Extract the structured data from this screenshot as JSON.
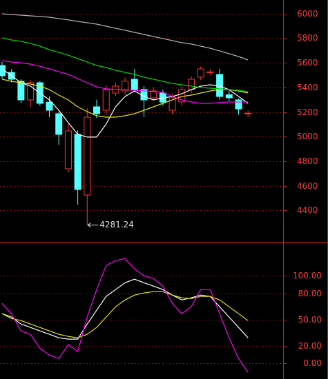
{
  "chart_data": [
    {
      "type": "candlestick",
      "categories": [
        null,
        null,
        null,
        null,
        null,
        null,
        null,
        null,
        null,
        null,
        null,
        null,
        null,
        null,
        null,
        null,
        null,
        null,
        null,
        null,
        null,
        null,
        null,
        null,
        null,
        null,
        null
      ],
      "open": [
        5578,
        5522,
        5450,
        5298,
        5438,
        5280,
        5186,
        4738,
        5018,
        4525,
        5242,
        5214,
        5354,
        5371,
        5466,
        5382,
        5315,
        5354,
        5214,
        5282,
        5382,
        5483,
        5520,
        5505,
        5340,
        5298,
        5186
      ],
      "high": [
        5606,
        5550,
        5466,
        5460,
        5450,
        5326,
        5200,
        5102,
        5050,
        5230,
        5300,
        5420,
        5440,
        5480,
        5550,
        5410,
        5400,
        5380,
        5350,
        5410,
        5490,
        5570,
        5550,
        5550,
        5380,
        5310,
        5210
      ],
      "low": [
        5466,
        5440,
        5270,
        5242,
        5250,
        5158,
        4934,
        4710,
        4447,
        4281.24,
        5150,
        5180,
        5330,
        5340,
        5360,
        5158,
        5290,
        5250,
        5180,
        5250,
        5350,
        5460,
        5500,
        5300,
        5290,
        5180,
        5160
      ],
      "close": [
        5494,
        5466,
        5298,
        5438,
        5270,
        5214,
        5018,
        5046,
        4570,
        5158,
        5186,
        5382,
        5410,
        5450,
        5382,
        5298,
        5371,
        5280,
        5315,
        5382,
        5466,
        5550,
        5526,
        5326,
        5315,
        5225,
        5190
      ],
      "up_color": "#ff3232",
      "down_color": "#54ffff",
      "series": [
        {
          "color": "#ffffff",
          "values": [
            5550,
            5494,
            5438,
            5410,
            5354,
            5298,
            5214,
            5113,
            5018,
            4996,
            4996,
            5102,
            5242,
            5326,
            5371,
            5326,
            5298,
            5315,
            5326,
            5348,
            5382,
            5410,
            5421,
            5410,
            5382,
            5326,
            5270
          ]
        },
        {
          "color": "#e6e600",
          "values": [
            5466,
            5449,
            5438,
            5427,
            5410,
            5382,
            5337,
            5298,
            5242,
            5203,
            5169,
            5158,
            5158,
            5169,
            5186,
            5214,
            5242,
            5270,
            5298,
            5326,
            5337,
            5354,
            5371,
            5382,
            5382,
            5371,
            5354
          ]
        },
        {
          "color": "#ff00ff",
          "values": [
            5617,
            5606,
            5600,
            5589,
            5572,
            5550,
            5528,
            5505,
            5472,
            5438,
            5404,
            5388,
            5382,
            5382,
            5376,
            5371,
            5365,
            5360,
            5326,
            5298,
            5281,
            5270,
            5270,
            5276,
            5281,
            5281,
            5281
          ]
        },
        {
          "color": "#00d000",
          "values": [
            5802,
            5785,
            5774,
            5757,
            5735,
            5707,
            5684,
            5662,
            5634,
            5606,
            5578,
            5561,
            5539,
            5522,
            5505,
            5483,
            5466,
            5449,
            5432,
            5421,
            5410,
            5399,
            5393,
            5388,
            5382,
            5376,
            5365
          ]
        },
        {
          "color": "#b0b0b0",
          "values": [
            5998,
            5992,
            5987,
            5981,
            5976,
            5970,
            5959,
            5948,
            5936,
            5925,
            5914,
            5897,
            5880,
            5864,
            5847,
            5830,
            5813,
            5796,
            5780,
            5763,
            5752,
            5735,
            5718,
            5696,
            5673,
            5651,
            5623
          ]
        }
      ],
      "ylim": [
        4150,
        6110
      ],
      "yticks": [
        4400,
        4600,
        4800,
        5000,
        5200,
        5400,
        5600,
        5800,
        6000
      ],
      "grid": true
    },
    {
      "type": "line",
      "categories": [
        null,
        null,
        null,
        null,
        null,
        null,
        null,
        null,
        null,
        null,
        null,
        null,
        null,
        null,
        null,
        null,
        null,
        null,
        null,
        null,
        null,
        null,
        null,
        null,
        null,
        null,
        null
      ],
      "series": [
        {
          "color": "#ffffff",
          "values": [
            56.7,
            52.8,
            44.9,
            40.9,
            37.0,
            33.1,
            29.1,
            27.6,
            27.6,
            44.9,
            60.6,
            76.4,
            84.3,
            92.1,
            96.1,
            92.1,
            88.2,
            84.3,
            78.0,
            72.4,
            74.8,
            78.0,
            76.4,
            64.6,
            52.8,
            40.9,
            29.1
          ]
        },
        {
          "color": "#e6e600",
          "values": [
            56.7,
            51.2,
            48.8,
            44.9,
            40.9,
            37.0,
            33.1,
            30.7,
            29.1,
            33.1,
            40.9,
            52.8,
            64.6,
            72.4,
            78.0,
            80.3,
            81.9,
            81.9,
            78.0,
            74.8,
            74.0,
            76.4,
            76.4,
            72.4,
            64.6,
            56.7,
            48.8
          ]
        },
        {
          "color": "#ff00ff",
          "values": [
            68.5,
            56.7,
            37.0,
            33.1,
            17.3,
            9.4,
            5.5,
            21.3,
            13.4,
            52.8,
            84.3,
            111.8,
            117.3,
            119.7,
            107.9,
            100.0,
            96.9,
            88.2,
            68.5,
            56.7,
            64.6,
            84.3,
            84.3,
            56.7,
            29.1,
            5.5,
            -10.2
          ]
        }
      ],
      "ylim": [
        -18,
        138
      ],
      "yticks": [
        {
          "value": 0,
          "label": "0.00"
        },
        {
          "value": 20,
          "label": "20.00"
        },
        {
          "value": 50,
          "label": "50.00"
        },
        {
          "value": 80,
          "label": "80.00"
        },
        {
          "value": 100,
          "label": "100.00"
        }
      ],
      "grid": true
    }
  ]
}
